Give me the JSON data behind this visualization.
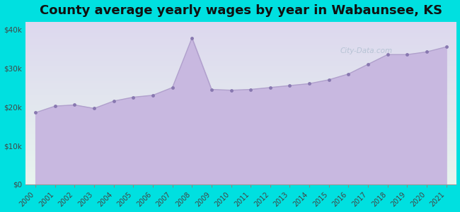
{
  "title": "County average yearly wages by year in Wabaunsee, KS",
  "years": [
    2000,
    2001,
    2002,
    2003,
    2004,
    2005,
    2006,
    2007,
    2008,
    2009,
    2010,
    2011,
    2012,
    2013,
    2014,
    2015,
    2016,
    2017,
    2018,
    2019,
    2020,
    2021
  ],
  "wages": [
    18500,
    20200,
    20500,
    19600,
    21500,
    22500,
    23000,
    25000,
    37800,
    24500,
    24300,
    24500,
    25000,
    25500,
    26000,
    27000,
    28500,
    31000,
    33500,
    33500,
    34200,
    35500
  ],
  "line_color": "#b0a0cc",
  "fill_color": "#c8b8e0",
  "marker_color": "#8878b0",
  "background_color": "#00e0e0",
  "plot_bg_color_top": "#e8f5ee",
  "plot_bg_color_bottom": "#ddd8ee",
  "ylim": [
    0,
    42000
  ],
  "yticks": [
    0,
    10000,
    20000,
    30000,
    40000
  ],
  "ytick_labels": [
    "$0",
    "$10k",
    "$20k",
    "$30k",
    "$40k"
  ],
  "title_fontsize": 13,
  "marker_size": 3.5,
  "figwidth": 6.5,
  "figheight": 3.0
}
